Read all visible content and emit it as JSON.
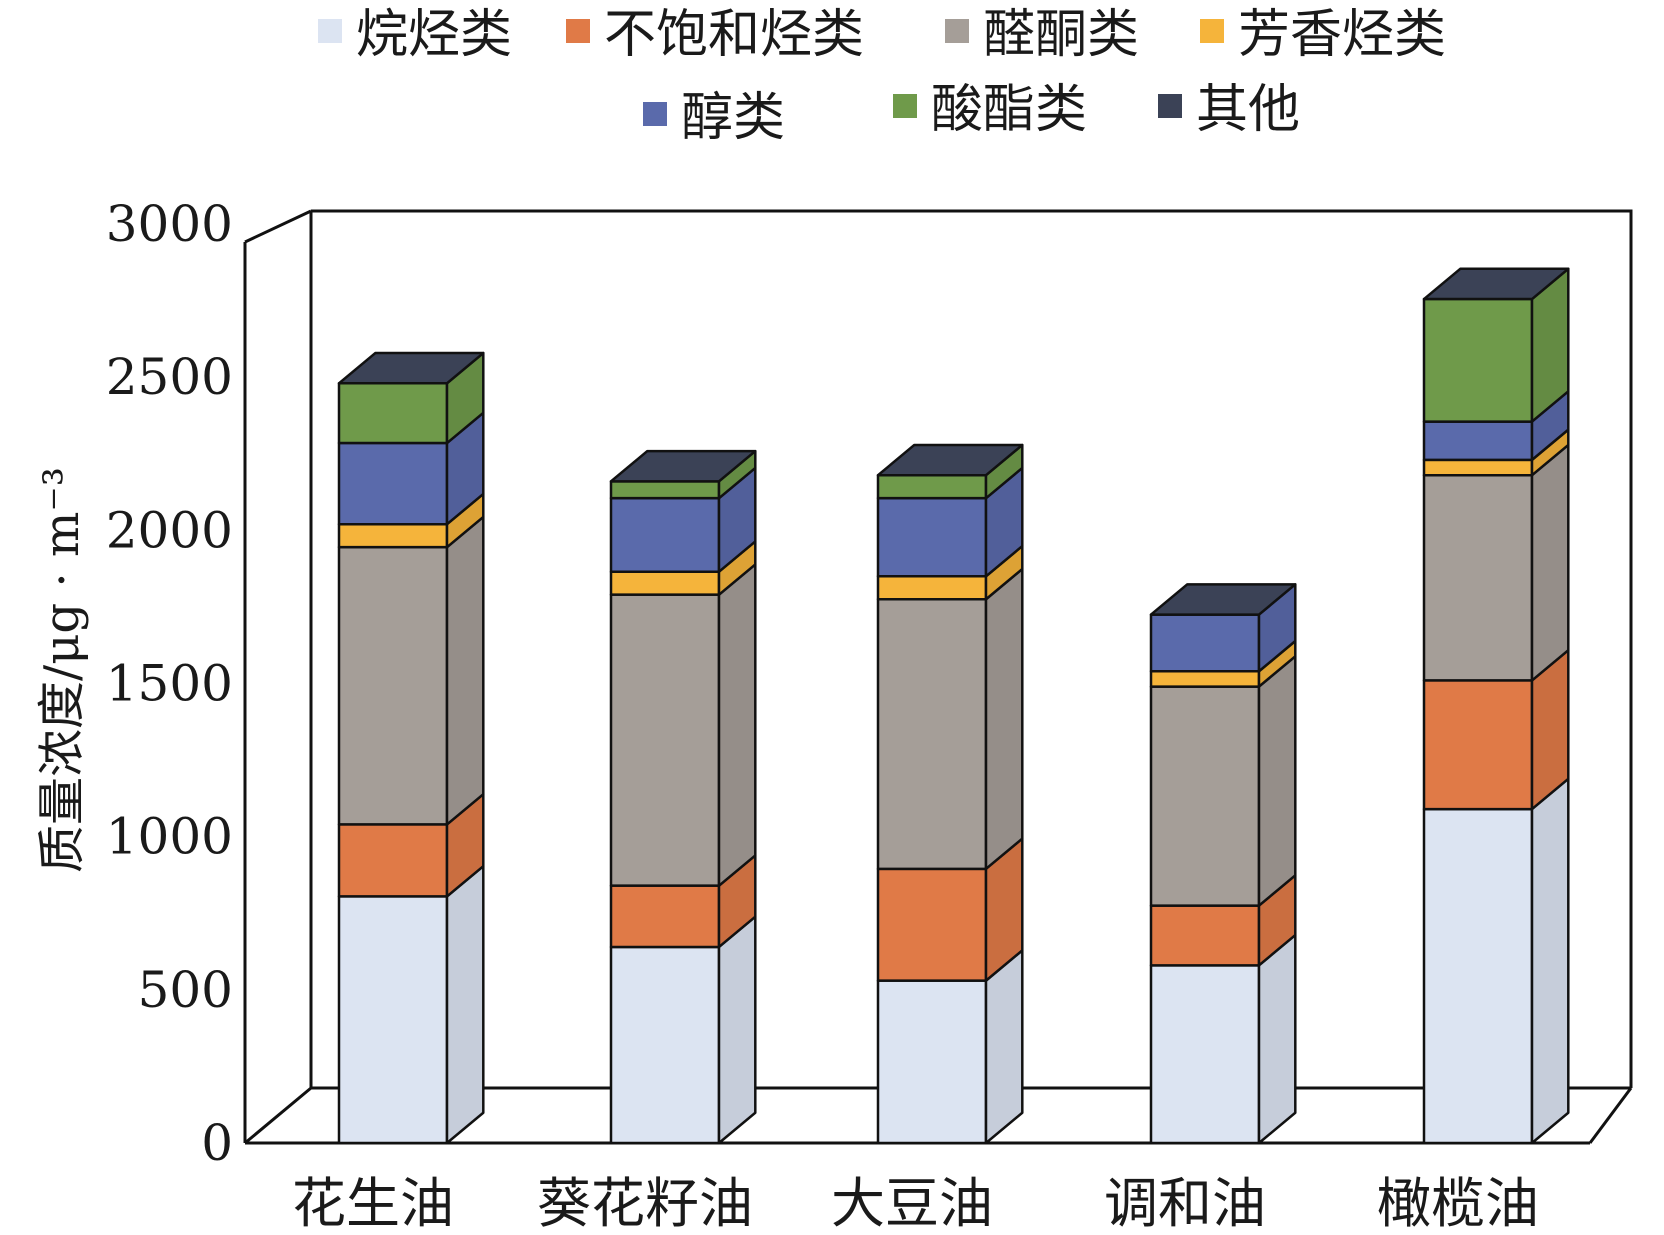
{
  "chart_data": {
    "type": "bar",
    "stacked": true,
    "style": "3d",
    "ylabel": "质量浓度/μg · m⁻³",
    "ylim": [
      0,
      3000
    ],
    "yticks": [
      0,
      500,
      1000,
      1500,
      2000,
      2500,
      3000
    ],
    "categories": [
      "花生油",
      "葵花籽油",
      "大豆油",
      "调和油",
      "橄榄油"
    ],
    "legend_position": "top",
    "series": [
      {
        "name": "烷烃类",
        "color": "#dce4f2",
        "values": [
          805,
          640,
          530,
          580,
          1090
        ]
      },
      {
        "name": "不饱和烃类",
        "color": "#e07a47",
        "values": [
          235,
          200,
          365,
          195,
          420
        ]
      },
      {
        "name": "醛酮类",
        "color": "#a59e98",
        "values": [
          905,
          950,
          880,
          715,
          670
        ]
      },
      {
        "name": "芳香烃类",
        "color": "#f5b43b",
        "values": [
          75,
          75,
          75,
          50,
          50
        ]
      },
      {
        "name": "醇类",
        "color": "#5a6aab",
        "values": [
          265,
          240,
          255,
          185,
          125
        ]
      },
      {
        "name": "酸酯类",
        "color": "#6f9a4a",
        "values": [
          195,
          55,
          75,
          0,
          400
        ]
      },
      {
        "name": "其他",
        "color": "#3b4256",
        "values": [
          0,
          0,
          0,
          0,
          0
        ]
      }
    ]
  }
}
